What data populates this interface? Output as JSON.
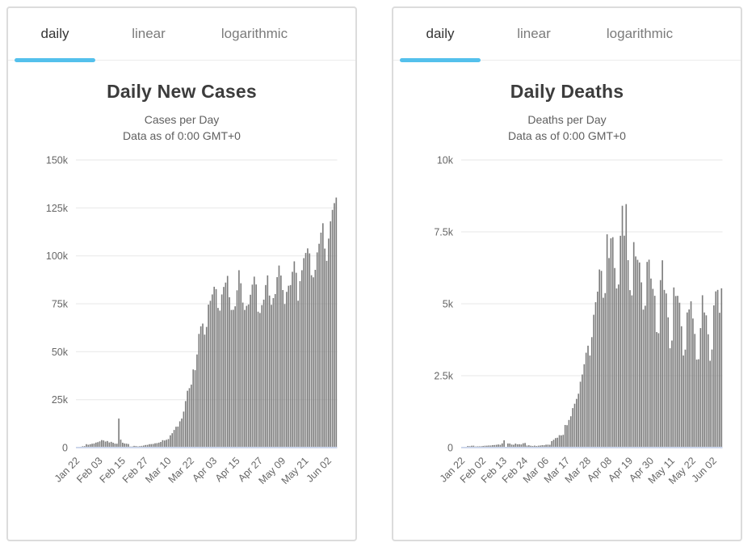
{
  "tabs": {
    "items": [
      {
        "label": "daily",
        "active": true
      },
      {
        "label": "linear",
        "active": false
      },
      {
        "label": "logarithmic",
        "active": false
      }
    ],
    "accent_color": "#54c0ec"
  },
  "colors": {
    "bar": "#7d7d7d",
    "grid": "#e7e7e7",
    "axis_line": "#ccd6eb",
    "tick_text": "#666666",
    "card_border": "#dcdcdc"
  },
  "dates": [
    "Jan 22",
    "Jan 23",
    "Jan 24",
    "Jan 25",
    "Jan 26",
    "Jan 27",
    "Jan 28",
    "Jan 29",
    "Jan 30",
    "Jan 31",
    "Feb 01",
    "Feb 02",
    "Feb 03",
    "Feb 04",
    "Feb 05",
    "Feb 06",
    "Feb 07",
    "Feb 08",
    "Feb 09",
    "Feb 10",
    "Feb 11",
    "Feb 12",
    "Feb 13",
    "Feb 14",
    "Feb 15",
    "Feb 16",
    "Feb 17",
    "Feb 18",
    "Feb 19",
    "Feb 20",
    "Feb 21",
    "Feb 22",
    "Feb 23",
    "Feb 24",
    "Feb 25",
    "Feb 26",
    "Feb 27",
    "Feb 28",
    "Feb 29",
    "Mar 01",
    "Mar 02",
    "Mar 03",
    "Mar 04",
    "Mar 05",
    "Mar 06",
    "Mar 07",
    "Mar 08",
    "Mar 09",
    "Mar 10",
    "Mar 11",
    "Mar 12",
    "Mar 13",
    "Mar 14",
    "Mar 15",
    "Mar 16",
    "Mar 17",
    "Mar 18",
    "Mar 19",
    "Mar 20",
    "Mar 21",
    "Mar 22",
    "Mar 23",
    "Mar 24",
    "Mar 25",
    "Mar 26",
    "Mar 27",
    "Mar 28",
    "Mar 29",
    "Mar 30",
    "Mar 31",
    "Apr 01",
    "Apr 02",
    "Apr 03",
    "Apr 04",
    "Apr 05",
    "Apr 06",
    "Apr 07",
    "Apr 08",
    "Apr 09",
    "Apr 10",
    "Apr 11",
    "Apr 12",
    "Apr 13",
    "Apr 14",
    "Apr 15",
    "Apr 16",
    "Apr 17",
    "Apr 18",
    "Apr 19",
    "Apr 20",
    "Apr 21",
    "Apr 22",
    "Apr 23",
    "Apr 24",
    "Apr 25",
    "Apr 26",
    "Apr 27",
    "Apr 28",
    "Apr 29",
    "Apr 30",
    "May 01",
    "May 02",
    "May 03",
    "May 04",
    "May 05",
    "May 06",
    "May 07",
    "May 08",
    "May 09",
    "May 10",
    "May 11",
    "May 12",
    "May 13",
    "May 14",
    "May 15",
    "May 16",
    "May 17",
    "May 18",
    "May 19",
    "May 20",
    "May 21",
    "May 22",
    "May 23",
    "May 24",
    "May 25",
    "May 26",
    "May 27",
    "May 28",
    "May 29",
    "May 30",
    "May 31",
    "Jun 01",
    "Jun 02",
    "Jun 03",
    "Jun 04",
    "Jun 05",
    "Jun 06"
  ],
  "chart_data": [
    {
      "type": "bar",
      "title": "Daily New Cases",
      "subtitle1": "Cases per Day",
      "subtitle2": "Data as of 0:00 GMT+0",
      "ylim": [
        0,
        150000
      ],
      "yticks": [
        {
          "value": 0,
          "label": "0"
        },
        {
          "value": 25000,
          "label": "25k"
        },
        {
          "value": 50000,
          "label": "50k"
        },
        {
          "value": 75000,
          "label": "75k"
        },
        {
          "value": 100000,
          "label": "100k"
        },
        {
          "value": 125000,
          "label": "125k"
        },
        {
          "value": 150000,
          "label": "150k"
        }
      ],
      "xtick_step": 12,
      "xtick_labels": [
        "Jan 22",
        "Feb 03",
        "Feb 15",
        "Feb 27",
        "Mar 10",
        "Mar 22",
        "Apr 03",
        "Apr 15",
        "Apr 27",
        "May 09",
        "May 21",
        "Jun 02"
      ],
      "grid": true,
      "legend": "none",
      "values": [
        98,
        259,
        441,
        700,
        786,
        1781,
        1477,
        1755,
        2005,
        2127,
        2603,
        2837,
        3239,
        3927,
        3727,
        3160,
        3437,
        2676,
        3001,
        2546,
        2071,
        2028,
        15141,
        4156,
        2538,
        2154,
        2059,
        1864,
        546,
        589,
        890,
        822,
        620,
        744,
        899,
        1066,
        1335,
        1426,
        1775,
        1820,
        1912,
        2240,
        2325,
        2582,
        2935,
        3867,
        3702,
        4076,
        4465,
        6390,
        7507,
        9210,
        10885,
        10958,
        13700,
        15144,
        18779,
        24265,
        29636,
        31022,
        32831,
        40753,
        40383,
        48567,
        59293,
        63227,
        64671,
        58925,
        62932,
        74556,
        76566,
        79866,
        83877,
        82641,
        72840,
        71424,
        79863,
        83780,
        86053,
        89543,
        78424,
        71786,
        71864,
        73695,
        82035,
        92506,
        85699,
        75625,
        71787,
        73920,
        74655,
        79709,
        84996,
        89163,
        85078,
        70888,
        70192,
        74323,
        77163,
        84771,
        89802,
        79296,
        74479,
        77979,
        80086,
        88882,
        94953,
        89733,
        82169,
        74877,
        81224,
        84414,
        84769,
        91683,
        97135,
        91168,
        76599,
        86800,
        92500,
        98800,
        101500,
        103900,
        101300,
        89900,
        88800,
        92700,
        101800,
        106300,
        112100,
        117000,
        103800,
        97400,
        109000,
        118000,
        124000,
        127500,
        130400
      ]
    },
    {
      "type": "bar",
      "title": "Daily Deaths",
      "subtitle1": "Deaths per Day",
      "subtitle2": "Data as of 0:00 GMT+0",
      "ylim": [
        0,
        10000
      ],
      "yticks": [
        {
          "value": 0,
          "label": "0"
        },
        {
          "value": 2500,
          "label": "2.5k"
        },
        {
          "value": 5000,
          "label": "5k"
        },
        {
          "value": 7500,
          "label": "7.5k"
        },
        {
          "value": 10000,
          "label": "10k"
        }
      ],
      "xtick_step": 11,
      "xtick_labels": [
        "Jan 22",
        "Feb 02",
        "Feb 13",
        "Feb 24",
        "Mar 06",
        "Mar 17",
        "Mar 28",
        "Apr 08",
        "Apr 19",
        "Apr 30",
        "May 11",
        "May 22",
        "Jun 02"
      ],
      "grid": true,
      "legend": "none",
      "values": [
        17,
        25,
        26,
        56,
        49,
        64,
        66,
        38,
        43,
        46,
        46,
        57,
        65,
        66,
        73,
        73,
        86,
        89,
        97,
        108,
        97,
        146,
        254,
        13,
        143,
        142,
        105,
        98,
        139,
        115,
        118,
        109,
        150,
        160,
        71,
        81,
        64,
        57,
        68,
        54,
        67,
        72,
        85,
        81,
        100,
        102,
        97,
        226,
        271,
        330,
        343,
        432,
        425,
        443,
        786,
        779,
        961,
        1089,
        1373,
        1525,
        1694,
        1873,
        2291,
        2541,
        2898,
        3298,
        3543,
        3201,
        3840,
        4618,
        5055,
        5423,
        6192,
        6145,
        5209,
        5371,
        7415,
        6589,
        7276,
        7315,
        6243,
        5534,
        5671,
        7364,
        8408,
        7368,
        8465,
        6516,
        5474,
        5292,
        7144,
        6646,
        6529,
        6436,
        5745,
        4799,
        4932,
        6456,
        6534,
        5877,
        5519,
        5278,
        4016,
        3977,
        5824,
        6512,
        5482,
        5358,
        4529,
        3454,
        3722,
        5568,
        5270,
        5277,
        5037,
        4219,
        3202,
        3407,
        4699,
        4803,
        5087,
        4488,
        3952,
        3060,
        3072,
        4154,
        5297,
        4698,
        4598,
        3940,
        3019,
        3410,
        4944,
        5431,
        5483,
        4688,
        5538
      ]
    }
  ]
}
